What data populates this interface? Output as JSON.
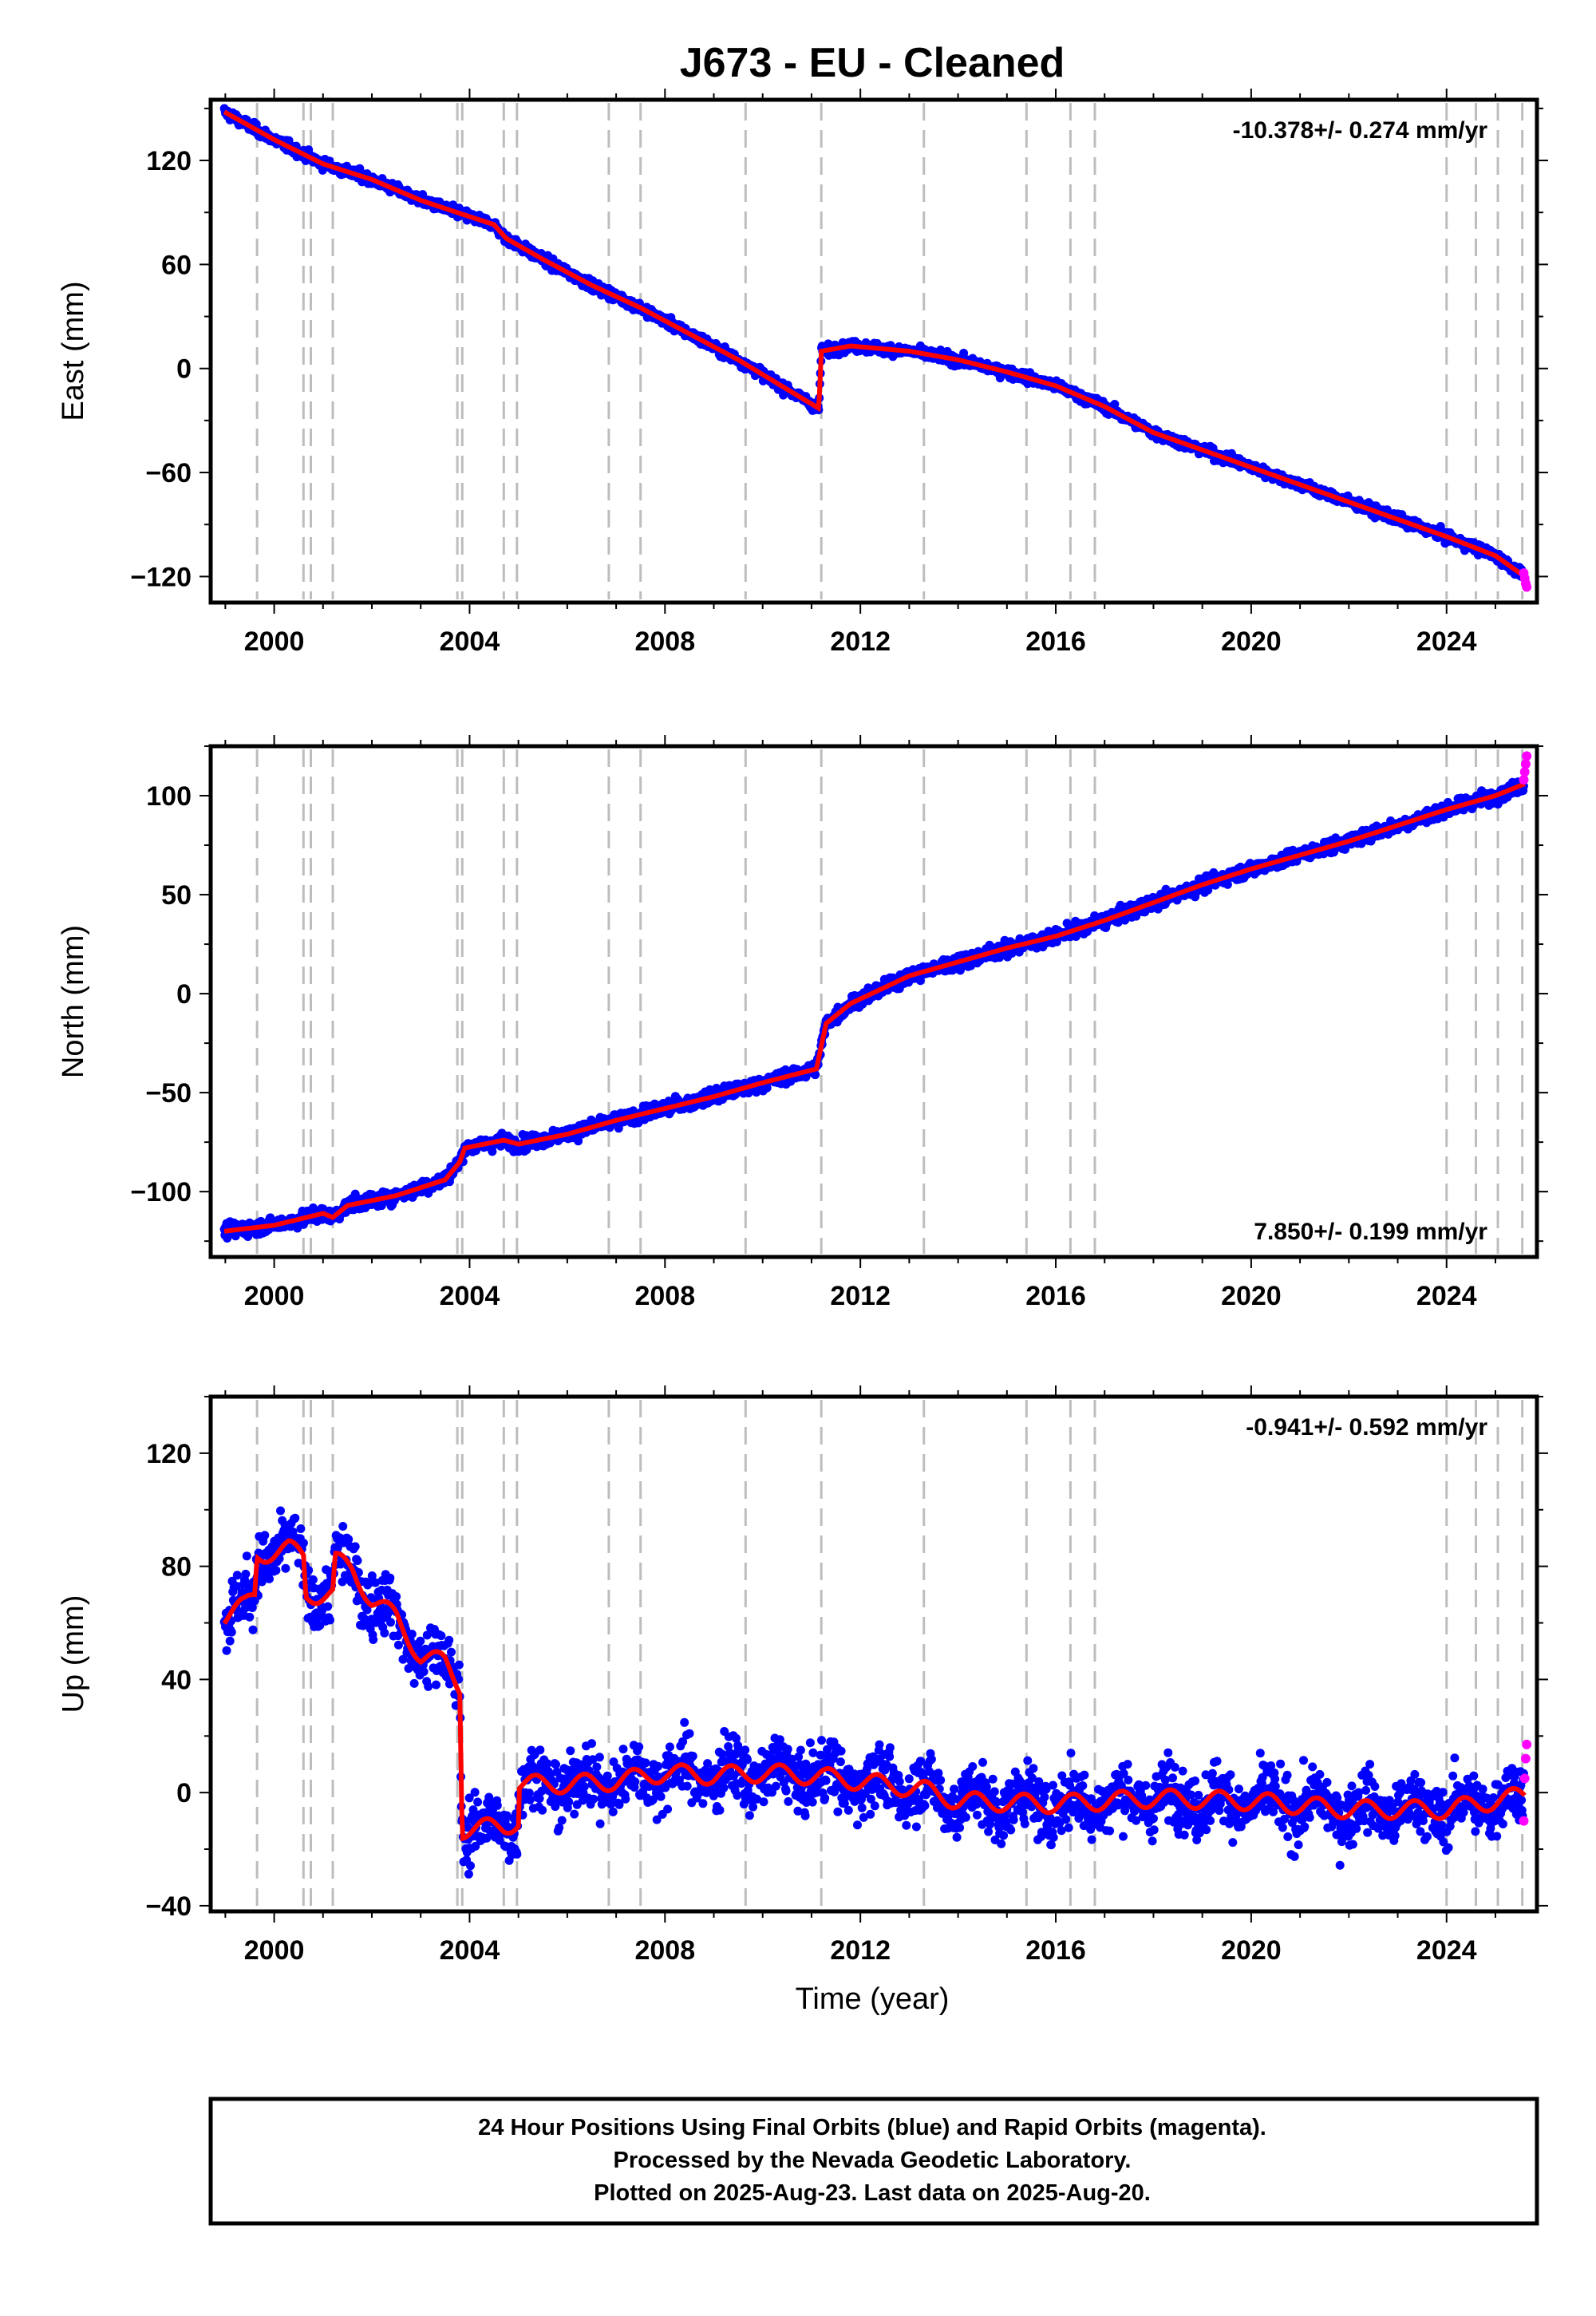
{
  "chart_data": {
    "type": "scatter",
    "title": "J673  - EU - Cleaned",
    "xlabel": "Time (year)",
    "xlim": [
      1998.7,
      2025.85
    ],
    "x_ticks": [
      "2000",
      "2004",
      "2008",
      "2012",
      "2016",
      "2020",
      "2024"
    ],
    "grid": false,
    "event_lines_years": [
      1999.65,
      2000.6,
      2000.75,
      2001.2,
      2003.75,
      2003.85,
      2004.7,
      2004.97,
      2006.85,
      2007.5,
      2009.65,
      2011.2,
      2013.3,
      2015.4,
      2016.3,
      2016.8,
      2024.0,
      2024.6,
      2025.05,
      2025.55
    ],
    "series_legend": [
      "Final Orbits (blue)",
      "Rapid Orbits (magenta)"
    ],
    "colors": {
      "final": "#0000ff",
      "rapid": "#ff00ff",
      "model": "#ff0000",
      "event": "#bdbdbd"
    },
    "panels": [
      {
        "id": "east",
        "ylabel": "East (mm)",
        "ylim": [
          -135,
          155
        ],
        "yticks": [
          -120,
          -60,
          0,
          60,
          120
        ],
        "rate_label": "-10.378+/- 0.274 mm/yr",
        "rate_position": "top-right",
        "noise_mm": 2.5,
        "seasonal_mm": 0,
        "trend_points": [
          [
            1998.98,
            148
          ],
          [
            2000.0,
            132
          ],
          [
            2001.0,
            118
          ],
          [
            2002.0,
            109
          ],
          [
            2003.0,
            97
          ],
          [
            2003.85,
            89
          ],
          [
            2004.5,
            83
          ],
          [
            2004.75,
            75
          ],
          [
            2005.5,
            63
          ],
          [
            2006.5,
            48
          ],
          [
            2007.5,
            35
          ],
          [
            2008.5,
            20
          ],
          [
            2009.5,
            5
          ],
          [
            2010.5,
            -12
          ],
          [
            2011.15,
            -23
          ],
          [
            2011.2,
            10
          ],
          [
            2011.8,
            13
          ],
          [
            2013.0,
            10
          ],
          [
            2014.0,
            5
          ],
          [
            2015.0,
            -2
          ],
          [
            2016.0,
            -10
          ],
          [
            2017.0,
            -22
          ],
          [
            2018.0,
            -37
          ],
          [
            2019.0,
            -47
          ],
          [
            2020.0,
            -57
          ],
          [
            2021.0,
            -67
          ],
          [
            2022.0,
            -77
          ],
          [
            2023.0,
            -87
          ],
          [
            2024.0,
            -97
          ],
          [
            2025.0,
            -108
          ],
          [
            2025.6,
            -120
          ]
        ],
        "rapid_points": [
          [
            2025.58,
            -118
          ],
          [
            2025.6,
            -121
          ],
          [
            2025.62,
            -124
          ],
          [
            2025.64,
            -126
          ]
        ]
      },
      {
        "id": "north",
        "ylabel": "North (mm)",
        "ylim": [
          -133,
          125
        ],
        "yticks": [
          -100,
          -50,
          0,
          50,
          100
        ],
        "rate_label": "7.850+/- 0.199 mm/yr",
        "rate_position": "bottom-right",
        "noise_mm": 3,
        "seasonal_mm": 0,
        "trend_points": [
          [
            1998.98,
            -120
          ],
          [
            2000.0,
            -117
          ],
          [
            2001.0,
            -111
          ],
          [
            2001.2,
            -113
          ],
          [
            2001.5,
            -107
          ],
          [
            2002.5,
            -102
          ],
          [
            2003.5,
            -94
          ],
          [
            2003.8,
            -85
          ],
          [
            2003.9,
            -78
          ],
          [
            2004.7,
            -74
          ],
          [
            2005.0,
            -76
          ],
          [
            2006.0,
            -71
          ],
          [
            2007.0,
            -64
          ],
          [
            2008.0,
            -58
          ],
          [
            2009.0,
            -52
          ],
          [
            2010.0,
            -45
          ],
          [
            2011.1,
            -38
          ],
          [
            2011.3,
            -15
          ],
          [
            2011.8,
            -5
          ],
          [
            2013.0,
            9
          ],
          [
            2014.0,
            16
          ],
          [
            2015.0,
            23
          ],
          [
            2016.0,
            29
          ],
          [
            2017.0,
            37
          ],
          [
            2018.0,
            46
          ],
          [
            2019.0,
            55
          ],
          [
            2020.0,
            63
          ],
          [
            2021.0,
            70
          ],
          [
            2022.0,
            77
          ],
          [
            2023.0,
            85
          ],
          [
            2024.0,
            93
          ],
          [
            2025.0,
            100
          ],
          [
            2025.6,
            106
          ]
        ],
        "rapid_points": [
          [
            2025.58,
            108
          ],
          [
            2025.6,
            112
          ],
          [
            2025.62,
            116
          ],
          [
            2025.64,
            120
          ]
        ]
      },
      {
        "id": "up",
        "ylabel": "Up (mm)",
        "ylim": [
          -42,
          140
        ],
        "yticks": [
          -40,
          0,
          40,
          80,
          120
        ],
        "rate_label": "-0.941+/- 0.592 mm/yr",
        "rate_position": "top-right",
        "noise_mm": 9,
        "seasonal_mm": 4,
        "trend_points": [
          [
            1998.98,
            62
          ],
          [
            1999.4,
            66
          ],
          [
            1999.6,
            70
          ],
          [
            1999.65,
            84
          ],
          [
            2000.3,
            86
          ],
          [
            2000.6,
            84
          ],
          [
            2000.65,
            70
          ],
          [
            2001.2,
            70
          ],
          [
            2001.25,
            82
          ],
          [
            2001.6,
            79
          ],
          [
            2002.0,
            68
          ],
          [
            2002.5,
            62
          ],
          [
            2003.0,
            48
          ],
          [
            2003.5,
            46
          ],
          [
            2003.8,
            38
          ],
          [
            2003.85,
            -13
          ],
          [
            2004.7,
            -12
          ],
          [
            2005.0,
            -10
          ],
          [
            2005.0,
            3
          ],
          [
            2006.0,
            3
          ],
          [
            2007.0,
            4
          ],
          [
            2008.0,
            7
          ],
          [
            2009.0,
            6
          ],
          [
            2010.0,
            7
          ],
          [
            2011.0,
            6
          ],
          [
            2012.0,
            4
          ],
          [
            2013.3,
            1
          ],
          [
            2014.0,
            -3
          ],
          [
            2016.0,
            -4
          ],
          [
            2018.0,
            -2
          ],
          [
            2020.0,
            -3
          ],
          [
            2022.0,
            -6
          ],
          [
            2024.0,
            -6
          ],
          [
            2025.6,
            -1
          ]
        ],
        "rapid_points": [
          [
            2025.58,
            -10
          ],
          [
            2025.6,
            5
          ],
          [
            2025.62,
            12
          ],
          [
            2025.64,
            17
          ]
        ]
      }
    ]
  },
  "footer": {
    "line1": "24 Hour Positions Using Final Orbits (blue) and Rapid Orbits (magenta).",
    "line2": "Processed by the Nevada Geodetic Laboratory.",
    "line3": "Plotted on 2025-Aug-23. Last data on 2025-Aug-20."
  }
}
